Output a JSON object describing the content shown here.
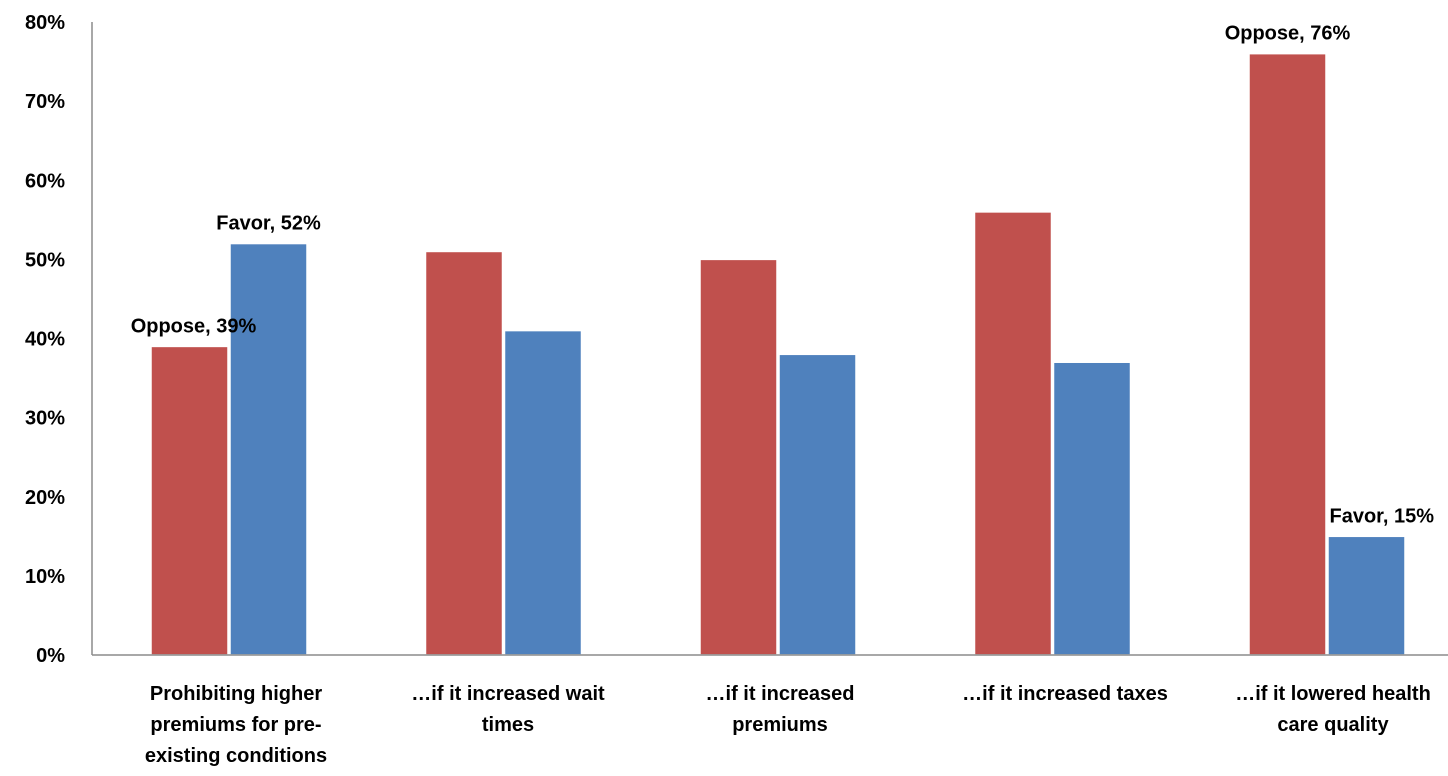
{
  "chart_data": {
    "type": "bar",
    "title": "",
    "xlabel": "",
    "ylabel": "",
    "ylim": [
      0,
      80
    ],
    "y_ticks": [
      0,
      10,
      20,
      30,
      40,
      50,
      60,
      70,
      80
    ],
    "y_tick_labels": [
      "0%",
      "10%",
      "20%",
      "30%",
      "40%",
      "50%",
      "60%",
      "70%",
      "80%"
    ],
    "grid": false,
    "legend": "none",
    "categories": [
      [
        "Prohibiting higher",
        "premiums for pre-",
        "existing conditions"
      ],
      [
        "…if it increased wait",
        "times"
      ],
      [
        "…if it increased",
        "premiums"
      ],
      [
        "…if it increased taxes"
      ],
      [
        "…if it lowered health",
        "care quality"
      ]
    ],
    "series": [
      {
        "name": "Oppose",
        "color": "#C0504D",
        "values": [
          39,
          51,
          50,
          56,
          76
        ]
      },
      {
        "name": "Favor",
        "color": "#4F81BD",
        "values": [
          52,
          41,
          38,
          37,
          15
        ]
      }
    ],
    "data_labels": [
      {
        "series": 0,
        "category": 0,
        "text": "Oppose, 39%"
      },
      {
        "series": 1,
        "category": 0,
        "text": "Favor, 52%"
      },
      {
        "series": 0,
        "category": 4,
        "text": "Oppose, 76%"
      },
      {
        "series": 1,
        "category": 4,
        "text": "Favor, 15%"
      }
    ]
  }
}
